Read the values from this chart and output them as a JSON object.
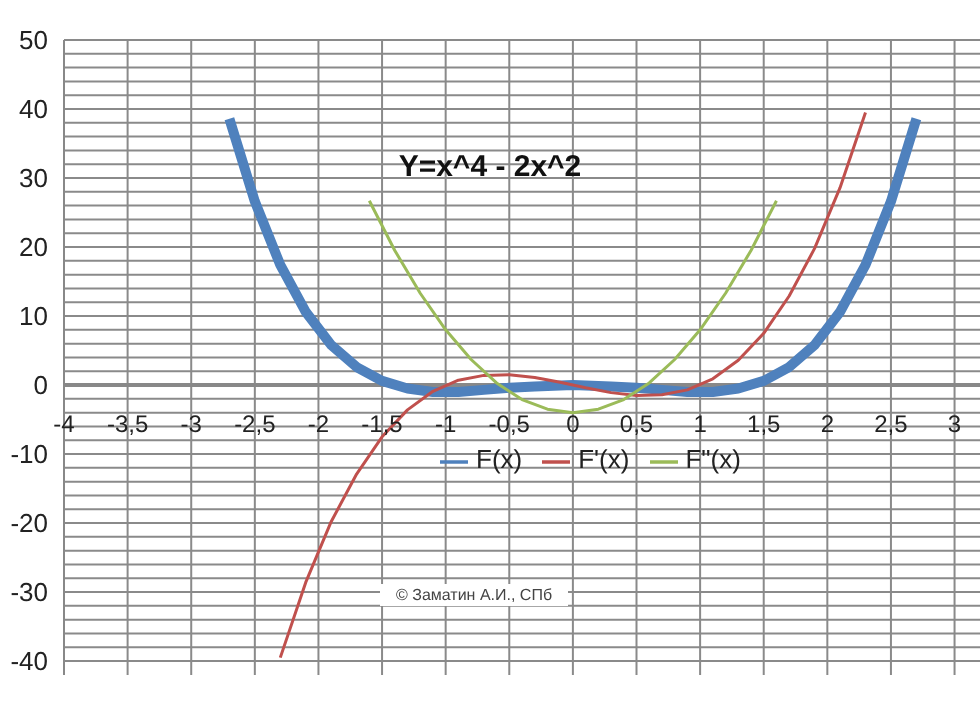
{
  "chart_data": {
    "type": "line",
    "title": "Y=x^4 - 2x^2",
    "annotations": [
      "© Заматин А.И., СПб"
    ],
    "series": [
      {
        "name": "F(x)",
        "color": "#4f81bd",
        "x": [
          -2.7,
          -2.5,
          -2.3,
          -2.1,
          -1.9,
          -1.7,
          -1.5,
          -1.3,
          -1.1,
          -0.9,
          -0.7,
          -0.5,
          -0.3,
          0,
          0.3,
          0.5,
          0.7,
          0.9,
          1.1,
          1.3,
          1.5,
          1.7,
          1.9,
          2.1,
          2.3,
          2.5,
          2.7
        ],
        "values": [
          38.6,
          26.6,
          17.4,
          10.6,
          5.8,
          2.6,
          0.6,
          -0.5,
          -1.0,
          -1.0,
          -0.7,
          -0.4,
          -0.2,
          0,
          -0.2,
          -0.4,
          -0.7,
          -1.0,
          -1.0,
          -0.5,
          0.6,
          2.6,
          5.8,
          10.6,
          17.4,
          26.6,
          38.6
        ]
      },
      {
        "name": "F'(x)",
        "color": "#c0504d",
        "x": [
          -2.3,
          -2.1,
          -1.9,
          -1.7,
          -1.5,
          -1.3,
          -1.1,
          -0.9,
          -0.7,
          -0.5,
          -0.3,
          -0.1,
          0.1,
          0.3,
          0.5,
          0.7,
          0.9,
          1.1,
          1.3,
          1.5,
          1.7,
          1.9,
          2.1,
          2.3
        ],
        "values": [
          -39.5,
          -28.6,
          -19.8,
          -12.9,
          -7.5,
          -3.6,
          -0.9,
          0.7,
          1.4,
          1.5,
          1.1,
          0.4,
          -0.4,
          -1.1,
          -1.5,
          -1.4,
          -0.7,
          0.9,
          3.6,
          7.5,
          12.9,
          19.8,
          28.6,
          39.5
        ]
      },
      {
        "name": "F\"(x)",
        "color": "#9bbb59",
        "x": [
          -1.6,
          -1.4,
          -1.2,
          -1.0,
          -0.8,
          -0.6,
          -0.4,
          -0.2,
          0,
          0.2,
          0.4,
          0.6,
          0.8,
          1.0,
          1.2,
          1.4,
          1.6
        ],
        "values": [
          26.7,
          19.5,
          13.3,
          8,
          3.7,
          0.3,
          -2.1,
          -3.5,
          -4,
          -3.5,
          -2.1,
          0.3,
          3.7,
          8,
          13.3,
          19.5,
          26.7
        ]
      }
    ],
    "xlim": [
      -4,
      3.2
    ],
    "xticks": [
      -4,
      {
        "value": -3.5,
        "label": "-3,5"
      },
      -3,
      {
        "value": -2.5,
        "label": "-2,5"
      },
      -2,
      {
        "value": -1.5,
        "label": "-1,5"
      },
      -1,
      {
        "value": -0.5,
        "label": "-0,5"
      },
      0,
      {
        "value": 0.5,
        "label": "0,5"
      },
      1,
      {
        "value": 1.5,
        "label": "1,5"
      },
      2,
      {
        "value": 2.5,
        "label": "2,5"
      },
      3
    ],
    "ylim": [
      -42,
      50
    ],
    "yticks": [
      -40,
      {
        "value": -38,
        "label": null
      },
      {
        "value": -36,
        "label": null
      },
      {
        "value": -34,
        "label": null
      },
      {
        "value": -32,
        "label": null
      },
      -30,
      {
        "value": -28,
        "label": null
      },
      {
        "value": -26,
        "label": null
      },
      {
        "value": -24,
        "label": null
      },
      {
        "value": -22,
        "label": null
      },
      -20,
      {
        "value": -18,
        "label": null
      },
      {
        "value": -16,
        "label": null
      },
      {
        "value": -14,
        "label": null
      },
      {
        "value": -12,
        "label": null
      },
      -10,
      {
        "value": -8,
        "label": null
      },
      {
        "value": -6,
        "label": null
      },
      {
        "value": -4,
        "label": null
      },
      {
        "value": -2,
        "label": null
      },
      0,
      {
        "value": 2,
        "label": null
      },
      {
        "value": 4,
        "label": null
      },
      {
        "value": 6,
        "label": null
      },
      {
        "value": 8,
        "label": null
      },
      10,
      {
        "value": 12,
        "label": null
      },
      {
        "value": 14,
        "label": null
      },
      {
        "value": 16,
        "label": null
      },
      {
        "value": 18,
        "label": null
      },
      20,
      {
        "value": 22,
        "label": null
      },
      {
        "value": 24,
        "label": null
      },
      {
        "value": 26,
        "label": null
      },
      {
        "value": 28,
        "label": null
      },
      30,
      {
        "value": 32,
        "label": null
      },
      {
        "value": 34,
        "label": null
      },
      {
        "value": 36,
        "label": null
      },
      {
        "value": 38,
        "label": null
      },
      40,
      {
        "value": 42,
        "label": null
      },
      {
        "value": 44,
        "label": null
      },
      {
        "value": 46,
        "label": null
      },
      {
        "value": 48,
        "label": null
      },
      50
    ],
    "grid": true,
    "legend": "center",
    "marker": "none",
    "line_style": "solid"
  }
}
